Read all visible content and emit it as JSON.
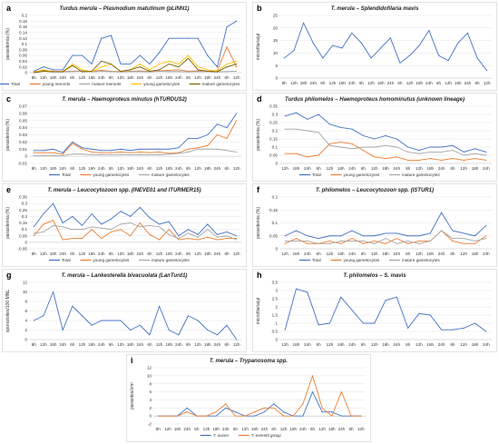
{
  "colors": {
    "total": "#4472c4",
    "young": "#ed7d31",
    "mature": "#a5a5a5",
    "young_gam": "#ffc000",
    "mature_gam": "#7f6000"
  },
  "chart_data": [
    {
      "id": "a",
      "letter": "a",
      "type": "line",
      "title": "Turdus merula – Plasmodium matutinum (pLINN1)",
      "ylabel": "parasitemia (%)",
      "ylim": [
        0,
        0.2
      ],
      "yticks": [
        "0",
        "0.02",
        "0.04",
        "0.06",
        "0.08",
        "0.1",
        "0.12",
        "0.14",
        "0.16",
        "0.18",
        "0.2"
      ],
      "categories": [
        "8h",
        "12h",
        "18h",
        "24h",
        "6h",
        "12h",
        "18h",
        "24h",
        "6h",
        "12h",
        "18h",
        "24h",
        "6h",
        "12h",
        "18h",
        "24h",
        "6h",
        "12h",
        "18h",
        "24h",
        "6h",
        "12h"
      ],
      "series": [
        {
          "name": "Total",
          "color": "total",
          "values": [
            0.005,
            0.02,
            0.01,
            0.01,
            0.06,
            0.06,
            0.03,
            0.12,
            0.13,
            0.03,
            0.03,
            0.06,
            0.03,
            0.07,
            0.12,
            0.12,
            0.12,
            0.12,
            0.06,
            0.02,
            0.16,
            0.18
          ]
        },
        {
          "name": "young meronts",
          "color": "young",
          "values": [
            0.003,
            0.008,
            0.005,
            0.004,
            0.005,
            0.006,
            0.004,
            0.008,
            0.005,
            0.004,
            0.005,
            0.006,
            0.004,
            0.006,
            0.008,
            0.01,
            0.005,
            0.006,
            0.005,
            0.006,
            0.09,
            0.02
          ]
        },
        {
          "name": "mature meronts",
          "color": "mature",
          "values": [
            0.002,
            0.005,
            0.004,
            0.003,
            0.004,
            0.005,
            0.003,
            0.005,
            0.004,
            0.003,
            0.004,
            0.004,
            0.003,
            0.005,
            0.004,
            0.004,
            0.003,
            0.004,
            0.004,
            0.003,
            0.004,
            0.005
          ]
        },
        {
          "name": "young gametocytes",
          "color": "young_gam",
          "values": [
            0.002,
            0.01,
            0.003,
            0.004,
            0.03,
            0.01,
            0.003,
            0.02,
            0.03,
            0.005,
            0.01,
            0.03,
            0.01,
            0.03,
            0.04,
            0.03,
            0.06,
            0.02,
            0.01,
            0.005,
            0.03,
            0.04
          ]
        },
        {
          "name": "mature gametocytes",
          "color": "mature_gam",
          "values": [
            0,
            0.005,
            0.003,
            0.003,
            0.025,
            0.003,
            0.005,
            0.04,
            0.03,
            0.004,
            0.01,
            0.02,
            0.005,
            0.01,
            0.03,
            0.02,
            0.05,
            0.01,
            0.005,
            0.003,
            0.02,
            0.03
          ]
        }
      ],
      "legend": [
        "Total",
        "young meronts",
        "mature meronts",
        "young gametocytes",
        "mature gametocytes"
      ]
    },
    {
      "id": "b",
      "letter": "b",
      "type": "line",
      "title": "T. merula – Splendidofilaria mavis",
      "ylabel": "microfilaria/µl",
      "ylim": [
        0,
        25
      ],
      "yticks": [
        "0",
        "5",
        "10",
        "15",
        "20",
        "25"
      ],
      "categories": [
        "8h",
        "12h",
        "18h",
        "24h",
        "6h",
        "12h",
        "18h",
        "24h",
        "6h",
        "12h",
        "18h",
        "24h",
        "6h",
        "12h",
        "18h",
        "24h",
        "6h",
        "12h",
        "18h",
        "24h",
        "6h",
        "12h"
      ],
      "series": [
        {
          "name": "",
          "color": "total",
          "values": [
            8,
            11,
            22,
            14,
            8,
            13,
            12,
            18,
            14,
            8,
            12,
            16,
            6,
            9,
            13,
            19,
            9,
            7,
            14,
            18,
            8,
            3
          ]
        }
      ],
      "legend": []
    },
    {
      "id": "c",
      "letter": "c",
      "type": "line",
      "title": "T. merula – Haemoproteus minutus (hTURDUS2)",
      "ylabel": "parasitemia (%)",
      "ylim": [
        -0.01,
        0.07
      ],
      "yticks": [
        "-0.01",
        "0",
        "0.01",
        "0.02",
        "0.03",
        "0.04",
        "0.05",
        "0.06",
        "0.07"
      ],
      "categories": [
        "8h",
        "12h",
        "18h",
        "24h",
        "6h",
        "12h",
        "18h",
        "24h",
        "6h",
        "12h",
        "18h",
        "24h",
        "6h",
        "12h",
        "18h",
        "24h",
        "6h",
        "12h",
        "18h",
        "24h",
        "6h",
        "12h"
      ],
      "series": [
        {
          "name": "Total",
          "color": "total",
          "values": [
            0.008,
            0.008,
            0.01,
            0.005,
            0.02,
            0.012,
            0.01,
            0.008,
            0.008,
            0.01,
            0.008,
            0.01,
            0.01,
            0.01,
            0.01,
            0.012,
            0.025,
            0.025,
            0.03,
            0.045,
            0.04,
            0.06
          ]
        },
        {
          "name": "young gametocytes",
          "color": "young",
          "values": [
            0.005,
            0.005,
            0.005,
            0.003,
            0.018,
            0.01,
            0.006,
            0.005,
            0.005,
            0.006,
            0.005,
            0.006,
            0.005,
            0.006,
            0.004,
            0.005,
            0.01,
            0.012,
            0.015,
            0.03,
            0.025,
            0.05
          ]
        },
        {
          "name": "mature gametocytes",
          "color": "mature",
          "values": [
            0.001,
            0.001,
            0.001,
            0.001,
            0.003,
            0.003,
            0.002,
            0.002,
            0.002,
            0.002,
            0.002,
            0.002,
            0.002,
            0.002,
            0.003,
            0.004,
            0.006,
            0.01,
            0.01,
            0.01,
            0.008,
            0.006
          ]
        }
      ],
      "legend": [
        "Total",
        "young gametocytes",
        "mature gametocytes"
      ]
    },
    {
      "id": "d",
      "letter": "d",
      "type": "line",
      "title": "Turdus philomelos – Haemoproteus homominutus (unknown lineage)",
      "ylabel": "parasitemia (%)",
      "ylim": [
        0,
        0.35
      ],
      "yticks": [
        "0",
        "0.05",
        "0.1",
        "0.15",
        "0.2",
        "0.25",
        "0.3",
        "0.35"
      ],
      "categories": [
        "12h",
        "18h",
        "24h",
        "6h",
        "12h",
        "18h",
        "24h",
        "6h",
        "12h",
        "18h",
        "24h",
        "6h",
        "12h",
        "18h",
        "24h",
        "6h",
        "12h",
        "18h",
        "24h"
      ],
      "series": [
        {
          "name": "Total",
          "color": "total",
          "values": [
            0.29,
            0.31,
            0.27,
            0.3,
            0.24,
            0.22,
            0.21,
            0.17,
            0.15,
            0.17,
            0.15,
            0.1,
            0.08,
            0.1,
            0.1,
            0.11,
            0.07,
            0.09,
            0.07
          ]
        },
        {
          "name": "young gametocytes",
          "color": "young",
          "values": [
            0.06,
            0.06,
            0.04,
            0.05,
            0.12,
            0.13,
            0.12,
            0.08,
            0.04,
            0.03,
            0.04,
            0.02,
            0.02,
            0.03,
            0.02,
            0.03,
            0.02,
            0.03,
            0.02
          ]
        },
        {
          "name": "mature gametocytes",
          "color": "mature",
          "values": [
            0.21,
            0.21,
            0.2,
            0.19,
            0.11,
            0.1,
            0.09,
            0.1,
            0.1,
            0.11,
            0.1,
            0.07,
            0.06,
            0.07,
            0.07,
            0.08,
            0.05,
            0.06,
            0.05
          ]
        }
      ],
      "legend": [
        "Total",
        "young gametocytes",
        "mature gametocytes"
      ]
    },
    {
      "id": "e",
      "letter": "e",
      "type": "line",
      "title": "T. merula – Leucocytozoon spp. (lNEVE01 and lTURMER15)",
      "ylabel": "parasitemia (%)",
      "ylim": [
        -0.05,
        0.35
      ],
      "yticks": [
        "-0.05",
        "0",
        "0.05",
        "0.1",
        "0.15",
        "0.2",
        "0.25",
        "0.3",
        "0.35"
      ],
      "categories": [
        "8h",
        "12h",
        "18h",
        "24h",
        "6h",
        "12h",
        "18h",
        "24h",
        "6h",
        "12h",
        "18h",
        "24h",
        "6h",
        "12h",
        "18h",
        "24h",
        "6h",
        "12h",
        "18h",
        "24h",
        "6h",
        "12h"
      ],
      "series": [
        {
          "name": "Total",
          "color": "total",
          "values": [
            0.12,
            0.22,
            0.3,
            0.15,
            0.2,
            0.13,
            0.22,
            0.14,
            0.18,
            0.24,
            0.2,
            0.27,
            0.19,
            0.14,
            0.16,
            0.05,
            0.1,
            0.06,
            0.14,
            0.06,
            0.08,
            0.05
          ]
        },
        {
          "name": "young gametocytes",
          "color": "young",
          "values": [
            0.05,
            0.14,
            0.17,
            0.02,
            0.03,
            0.03,
            0.1,
            0.03,
            0.08,
            0.1,
            0.05,
            0.15,
            0.06,
            0.02,
            0.1,
            0.02,
            0.03,
            0.02,
            0.04,
            0.02,
            0.03,
            0.03
          ]
        },
        {
          "name": "mature gametocytes",
          "color": "mature",
          "values": [
            0.07,
            0.08,
            0.13,
            0.12,
            0.1,
            0.1,
            0.12,
            0.11,
            0.1,
            0.14,
            0.15,
            0.12,
            0.13,
            0.12,
            0.06,
            0.03,
            0.07,
            0.04,
            0.1,
            0.04,
            0.05,
            0.02
          ]
        }
      ],
      "legend": [
        "Total",
        "young gametocytes",
        "mature gametocytes"
      ]
    },
    {
      "id": "f",
      "letter": "f",
      "type": "line",
      "title": "T. philomelos – Leucocytozoon spp. (lSTUR1)",
      "ylabel": "parasitemia (%)",
      "ylim": [
        0,
        0.2
      ],
      "yticks": [
        "0",
        "0.05",
        "0.1",
        "0.15",
        "0.2"
      ],
      "categories": [
        "12h",
        "18h",
        "24h",
        "6h",
        "12h",
        "18h",
        "24h",
        "6h",
        "12h",
        "18h",
        "24h",
        "6h",
        "12h",
        "18h",
        "24h",
        "6h",
        "12h",
        "18h",
        "24h"
      ],
      "series": [
        {
          "name": "Total",
          "color": "total",
          "values": [
            0.05,
            0.07,
            0.05,
            0.04,
            0.05,
            0.05,
            0.07,
            0.05,
            0.05,
            0.06,
            0.06,
            0.05,
            0.05,
            0.06,
            0.14,
            0.07,
            0.06,
            0.05,
            0.09
          ]
        },
        {
          "name": "young gametocytes",
          "color": "young",
          "values": [
            0.02,
            0.04,
            0.02,
            0.02,
            0.03,
            0.02,
            0.04,
            0.02,
            0.03,
            0.02,
            0.04,
            0.02,
            0.03,
            0.03,
            0.07,
            0.03,
            0.02,
            0.02,
            0.05
          ]
        },
        {
          "name": "mature gametocytes",
          "color": "mature",
          "values": [
            0.03,
            0.03,
            0.03,
            0.02,
            0.02,
            0.03,
            0.03,
            0.03,
            0.02,
            0.04,
            0.02,
            0.03,
            0.02,
            0.03,
            0.07,
            0.04,
            0.04,
            0.03,
            0.04
          ]
        }
      ],
      "legend": [
        "Total",
        "young gametocytes",
        "mature gametocytes"
      ]
    },
    {
      "id": "g",
      "letter": "g",
      "type": "line",
      "title": "T. merula – Lankesterella bivacuolata (LanTurd1)",
      "ylabel": "sporozoites/100 MNL",
      "ylim": [
        0,
        12
      ],
      "yticks": [
        "0",
        "2",
        "4",
        "6",
        "8",
        "10",
        "12"
      ],
      "categories": [
        "8h",
        "12h",
        "18h",
        "24h",
        "6h",
        "12h",
        "18h",
        "24h",
        "6h",
        "12h",
        "18h",
        "24h",
        "6h",
        "12h",
        "18h",
        "24h",
        "6h",
        "12h",
        "18h",
        "24h",
        "6h",
        "12h"
      ],
      "series": [
        {
          "name": "",
          "color": "total",
          "values": [
            4,
            5,
            10,
            2,
            7,
            5,
            3,
            4,
            4,
            4,
            2,
            3,
            1,
            7,
            2,
            1,
            5,
            4,
            2,
            1,
            3,
            0
          ]
        }
      ],
      "legend": []
    },
    {
      "id": "h",
      "letter": "h",
      "type": "line",
      "title": "T. philomelos – S. mavis",
      "ylabel": "microfilaria/µl",
      "ylim": [
        0,
        3.5
      ],
      "yticks": [
        "0",
        "0.5",
        "1",
        "1.5",
        "2",
        "2.5",
        "3",
        "3.5"
      ],
      "categories": [
        "12h",
        "18h",
        "24h",
        "6h",
        "12h",
        "18h",
        "24h",
        "6h",
        "12h",
        "18h",
        "24h",
        "6h",
        "12h",
        "18h",
        "24h",
        "6h",
        "12h",
        "18h",
        "24h"
      ],
      "series": [
        {
          "name": "",
          "color": "total",
          "values": [
            0.6,
            3.1,
            2.9,
            0.9,
            1,
            2.6,
            1.8,
            1,
            1,
            2.4,
            2.6,
            0.7,
            1.6,
            1.5,
            0.6,
            0.6,
            0.7,
            1,
            0.5
          ]
        }
      ],
      "legend": []
    },
    {
      "id": "i",
      "letter": "i",
      "type": "line",
      "title": "T. merula – Trypanosoma spp.",
      "ylabel": "parasites/cm²",
      "ylim": [
        -2,
        12
      ],
      "yticks": [
        "-2",
        "0",
        "2",
        "4",
        "6",
        "8",
        "10",
        "12"
      ],
      "categories": [
        "8h",
        "12h",
        "18h",
        "24h",
        "6h",
        "12h",
        "18h",
        "24h",
        "6h",
        "12h",
        "18h",
        "24h",
        "6h",
        "12h",
        "18h",
        "24h",
        "6h",
        "12h",
        "18h",
        "24h",
        "6h",
        "12h"
      ],
      "series": [
        {
          "name": "T. avium",
          "color": "total",
          "values": [
            0,
            0,
            0,
            2,
            0,
            0,
            0,
            2,
            1,
            0,
            0,
            1,
            3,
            1,
            0,
            0,
            6,
            1,
            1,
            0,
            0,
            0
          ]
        },
        {
          "name": "T. everetti group",
          "color": "young",
          "values": [
            0,
            0,
            0,
            1,
            0,
            0,
            1,
            3,
            0,
            0,
            1,
            2,
            2,
            0,
            0,
            3,
            10,
            2,
            0,
            6,
            0,
            0
          ]
        }
      ],
      "legend": [
        "T. avium",
        "T. everetti group"
      ]
    }
  ]
}
